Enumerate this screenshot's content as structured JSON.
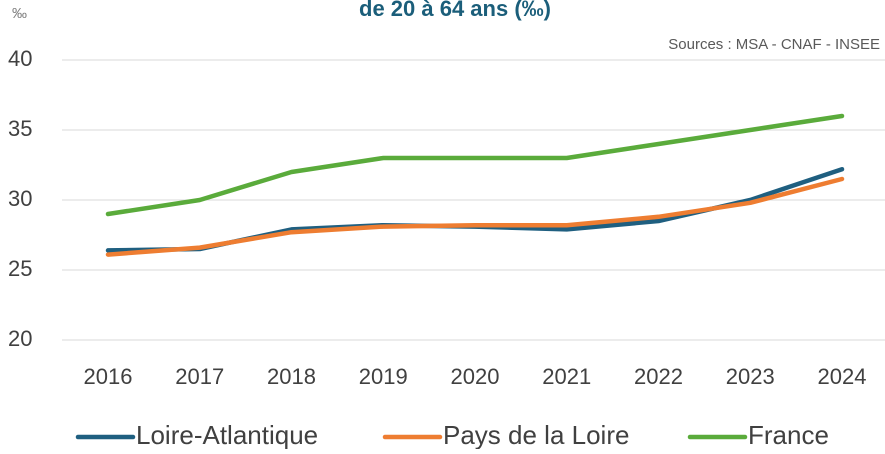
{
  "chart_data": {
    "type": "line",
    "title": "de 20 à 64 ans (‰)",
    "y_label": "‰",
    "source": "Sources : MSA - CNAF - INSEE",
    "categories": [
      "2016",
      "2017",
      "2018",
      "2019",
      "2020",
      "2021",
      "2022",
      "2023",
      "2024"
    ],
    "series": [
      {
        "name": "Loire-Atlantique",
        "color": "#1f5f80",
        "values": [
          26.4,
          26.5,
          27.9,
          28.2,
          28.1,
          27.9,
          28.5,
          30.0,
          32.2
        ]
      },
      {
        "name": "Pays de la Loire",
        "color": "#ee7d31",
        "values": [
          26.1,
          26.6,
          27.7,
          28.1,
          28.2,
          28.2,
          28.8,
          29.8,
          31.5
        ]
      },
      {
        "name": "France",
        "color": "#5aab3b",
        "values": [
          29,
          30,
          32,
          33,
          33,
          33,
          34,
          35,
          36
        ]
      }
    ],
    "ylim": [
      20,
      40
    ],
    "yticks": [
      20,
      25,
      30,
      35,
      40
    ],
    "grid": true,
    "legend": "bottom"
  }
}
